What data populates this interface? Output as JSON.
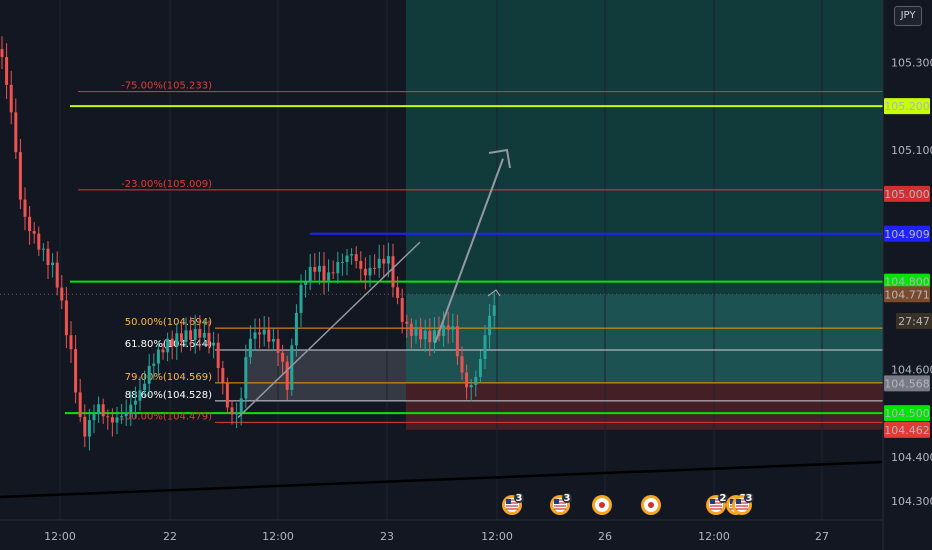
{
  "currency_button": "JPY",
  "chart_data": {
    "type": "candlestick",
    "ylim": [
      104.27,
      105.5
    ],
    "y_ticks": [
      "105.300",
      "105.100",
      "104.600",
      "104.400",
      "104.300"
    ],
    "x_ticks": [
      "12:00",
      "22",
      "12:00",
      "23",
      "12:00",
      "26",
      "12:00",
      "27"
    ],
    "price_tags": [
      {
        "text": "105.200",
        "value": 105.2,
        "bg": "#c6ff00",
        "fg": "#000000"
      },
      {
        "text": "105.000",
        "value": 105.0,
        "bg": "#d32f2f",
        "fg": "#ffffff"
      },
      {
        "text": "104.909",
        "value": 104.909,
        "bg": "#1e22ff",
        "fg": "#ffffff"
      },
      {
        "text": "104.800",
        "value": 104.8,
        "bg": "#00e600",
        "fg": "#000000"
      },
      {
        "text": "104.771",
        "value": 104.771,
        "bg": "#7a4a2b",
        "fg": "#ffffff"
      },
      {
        "text": "27:47",
        "value": 104.71,
        "bg": "#3a3126",
        "fg": "#ffffff"
      },
      {
        "text": "104.568",
        "value": 104.568,
        "bg": "#787b86",
        "fg": "#ffffff"
      },
      {
        "text": "104.500",
        "value": 104.5,
        "bg": "#00e600",
        "fg": "#000000"
      },
      {
        "text": "104.462",
        "value": 104.462,
        "bg": "#e53935",
        "fg": "#ffffff"
      }
    ],
    "fib_levels": [
      {
        "label": "-75.00%(105.233)",
        "value": 105.233,
        "color": "#e53935"
      },
      {
        "label": "-23.00%(105.009)",
        "value": 105.009,
        "color": "#e53935"
      },
      {
        "label": "50.00%(104.694)",
        "value": 104.694,
        "color": "#ff9800"
      },
      {
        "label": "61.80%(104.644)",
        "value": 104.644,
        "color": "#ffffff"
      },
      {
        "label": "79.00%(104.569)",
        "value": 104.569,
        "color": "#ff9800"
      },
      {
        "label": "88.60%(104.528)",
        "value": 104.528,
        "color": "#ffffff"
      },
      {
        "label": "100.00%(104.479)",
        "value": 104.479,
        "color": "#e53935"
      }
    ],
    "horizontal_lines": [
      {
        "value": 105.2,
        "color": "#c6ff00"
      },
      {
        "value": 104.909,
        "color": "#1e22ff"
      },
      {
        "value": 104.8,
        "color": "#00e600"
      },
      {
        "value": 104.5,
        "color": "#00e600"
      }
    ],
    "colors": {
      "up": "#26a69a",
      "down": "#ef5350",
      "background": "#131722",
      "target_zone": "#12413f",
      "stop_zone": "#4a2026"
    },
    "event_badges": [
      {
        "icon": "us-flag-icon",
        "count": "3"
      },
      {
        "icon": "us-flag-icon",
        "count": "3"
      },
      {
        "icon": "jp-flag-icon",
        "count": ""
      },
      {
        "icon": "jp-flag-icon",
        "count": ""
      },
      {
        "icon": "us-flag-icon",
        "count": "2"
      },
      {
        "icon": "us-flag-icon",
        "count": "2"
      },
      {
        "icon": "us-flag-icon",
        "count": "3"
      }
    ]
  }
}
